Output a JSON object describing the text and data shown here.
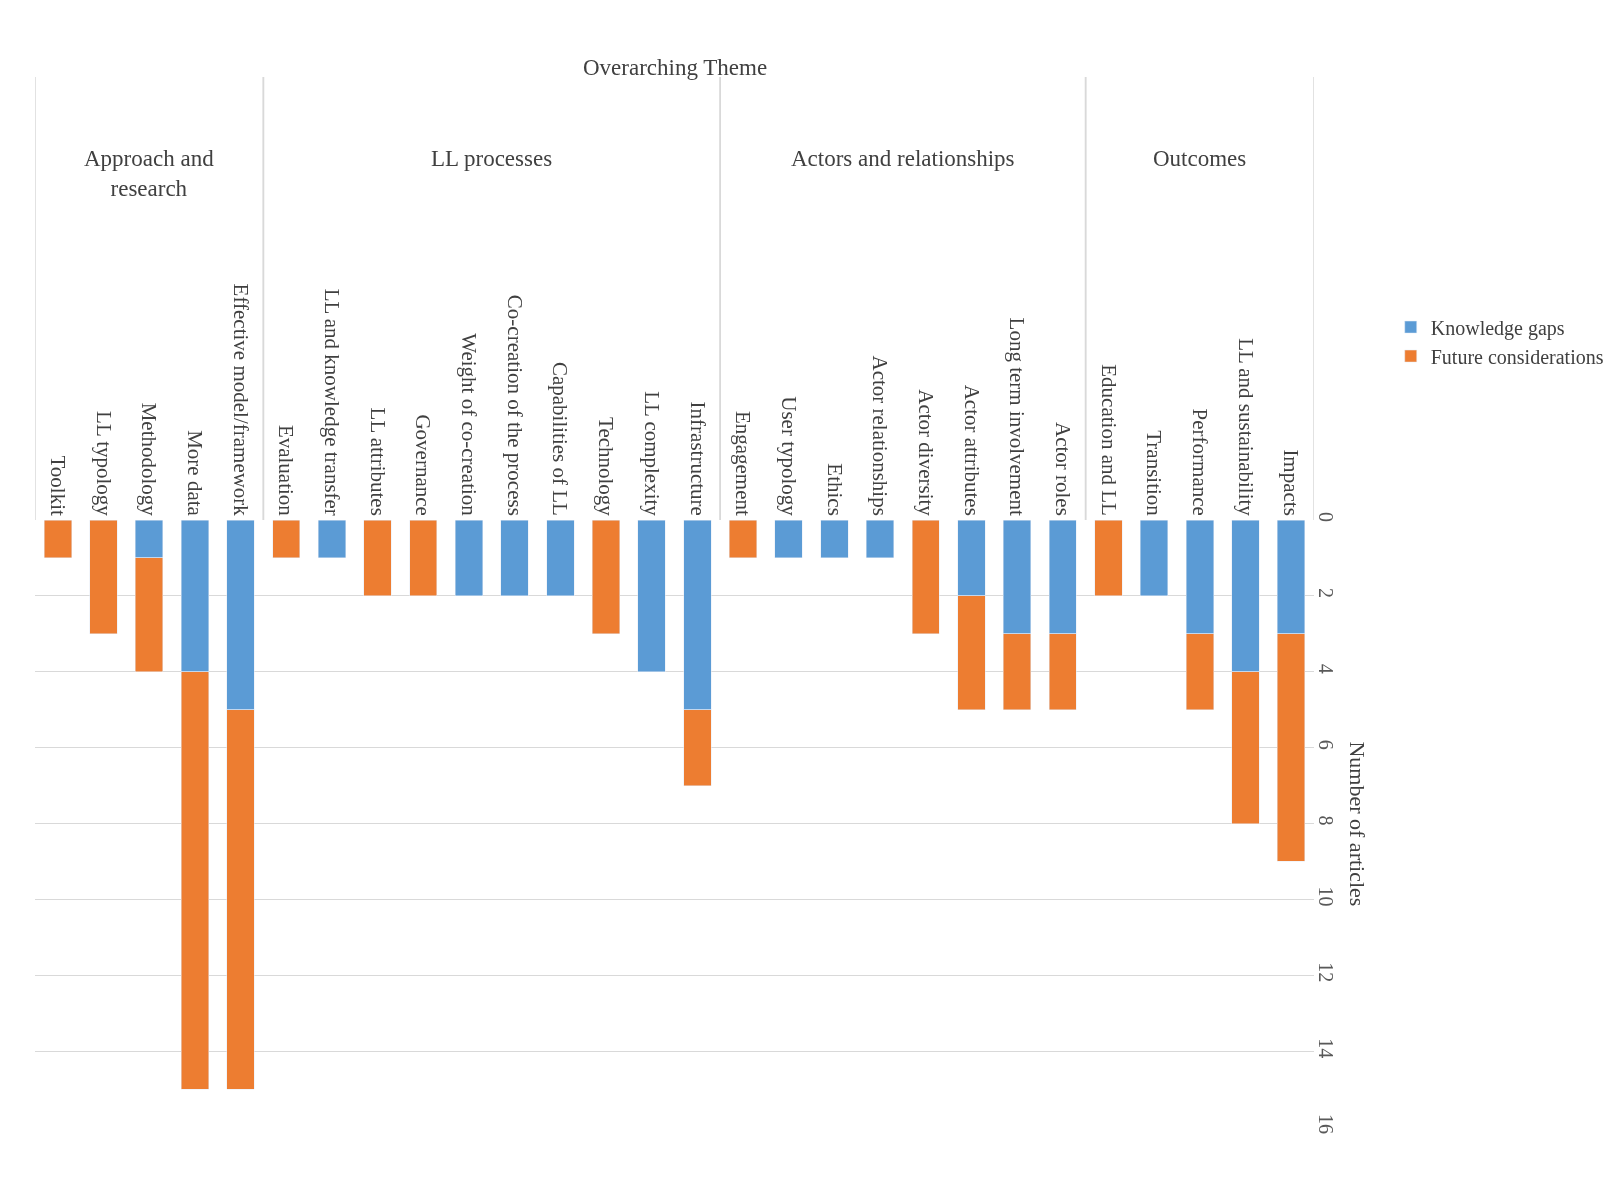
{
  "chart_data": {
    "type": "bar",
    "stacked": true,
    "ylabel": "Number of articles",
    "annotations": [
      "Overarching Theme",
      "Approach and research",
      "LL processes",
      "Actors and relationships",
      "Outcomes"
    ],
    "categories": [
      "Toolkit",
      "LL typology",
      "Methodology",
      "More data",
      "Effective model/framework",
      "Evaluation",
      "LL and knowledge transfer",
      "LL attributes",
      "Governance",
      "Weight of co-creation",
      "Co-creation of the process",
      "Capabilities of LL",
      "Technology",
      "LL complexity",
      "Infrastructure",
      "Engagement",
      "User typology",
      "Ethics",
      "Actor relationships",
      "Actor diversity",
      "Actor attributes",
      "Long term involvement",
      "Actor roles",
      "Education and LL",
      "Transition",
      "Performance",
      "LL and sustainability",
      "Impacts"
    ],
    "series": [
      {
        "name": "Knowledge gaps",
        "color": "#5b9bd5",
        "values": [
          null,
          null,
          1,
          4,
          5,
          null,
          1,
          null,
          null,
          2,
          2,
          2,
          null,
          4,
          5,
          null,
          1,
          1,
          1,
          null,
          2,
          3,
          3,
          null,
          2,
          3,
          4,
          3
        ]
      },
      {
        "name": "Future considerations",
        "color": "#ed7d31",
        "values": [
          1,
          3,
          3,
          11,
          10,
          1,
          null,
          2,
          2,
          null,
          null,
          null,
          3,
          null,
          2,
          1,
          null,
          null,
          null,
          3,
          3,
          2,
          2,
          2,
          null,
          2,
          4,
          6
        ]
      }
    ],
    "ylim": [
      16,
      0
    ],
    "yticks": [
      0,
      2,
      4,
      6,
      8,
      10,
      12,
      14,
      16
    ],
    "grid": "y",
    "legend": "right"
  }
}
